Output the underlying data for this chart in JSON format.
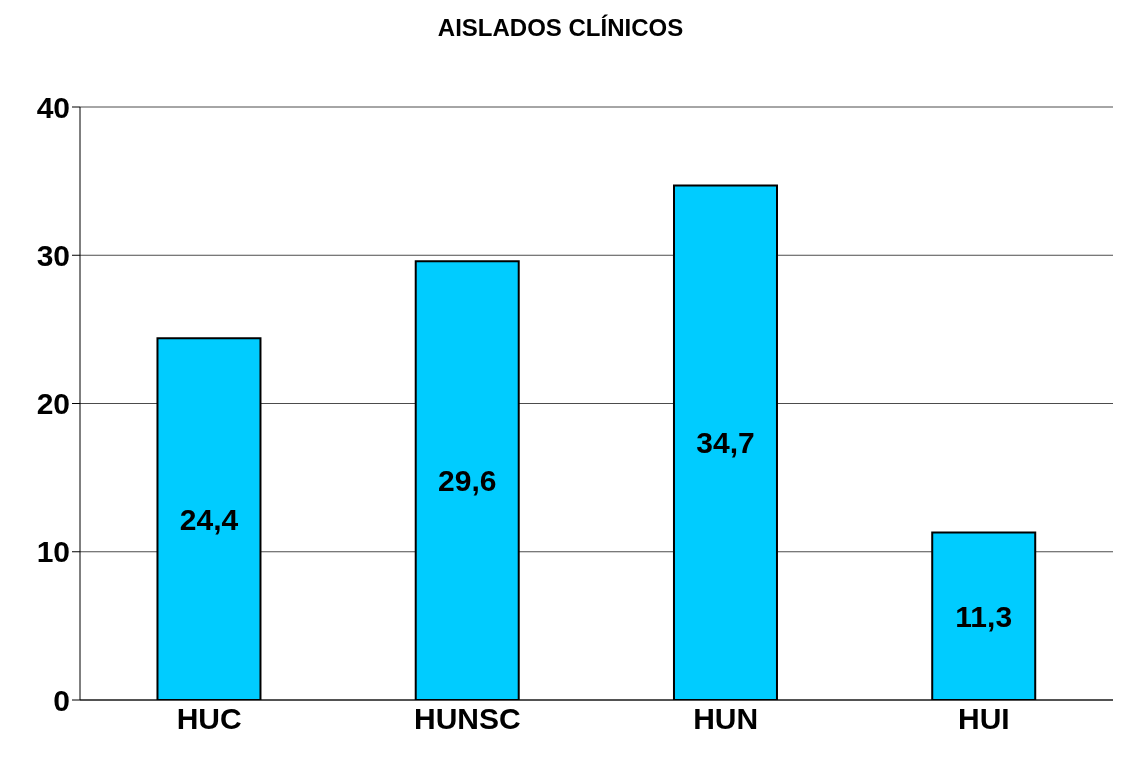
{
  "chart_data": {
    "type": "bar",
    "title": "AISLADOS CLÍNICOS",
    "categories": [
      "HUC",
      "HUNSC",
      "HUN",
      "HUI"
    ],
    "values": [
      24.4,
      29.6,
      34.7,
      11.3
    ],
    "value_labels": [
      "24,4",
      "29,6",
      "34,7",
      "11,3"
    ],
    "color": "#00ccff",
    "ylim": [
      0,
      40
    ],
    "yticks": [
      0,
      10,
      20,
      30,
      40
    ],
    "grid": "y",
    "legend": false
  }
}
